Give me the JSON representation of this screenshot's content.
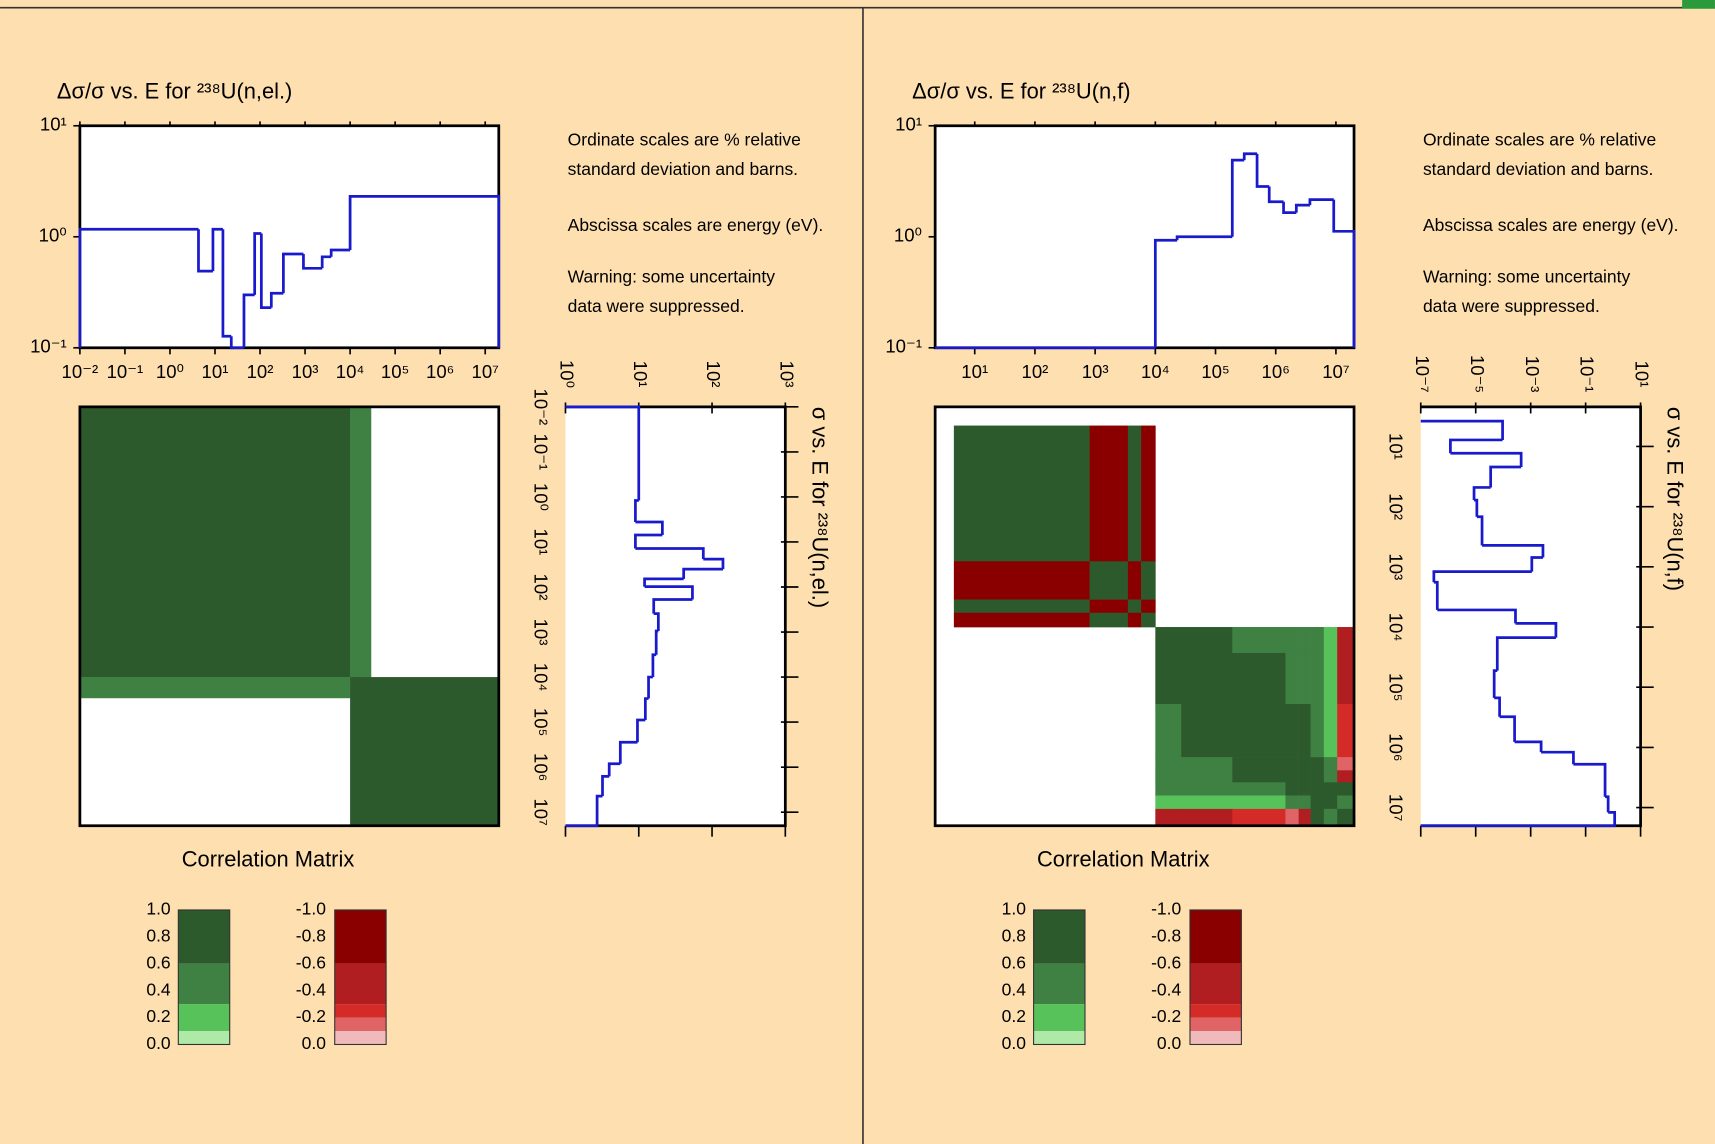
{
  "chart_data": [
    {
      "type": "covariance",
      "uncertainty": {
        "title": "Δσ/σ vs. E for ²³⁸U(n,el.)",
        "color": "#1a1acd",
        "bins": [
          0.01,
          4.3,
          9,
          15,
          23,
          44,
          76,
          107,
          178,
          330,
          920,
          2400,
          3800,
          10000,
          20000000
        ],
        "values": [
          1.17,
          0.49,
          1.17,
          0.127,
          0.1,
          0.3,
          1.07,
          0.23,
          0.31,
          0.7,
          0.52,
          0.66,
          0.76,
          2.31
        ],
        "log_x": true,
        "log_y": true,
        "xlim": [
          0.01,
          20000000
        ],
        "ylim": [
          0.1,
          10
        ],
        "xticks": [
          {
            "value": 0.01,
            "label": "10⁻²"
          },
          {
            "value": 0.1,
            "label": "10⁻¹"
          },
          {
            "value": 1,
            "label": "10⁰"
          },
          {
            "value": 10,
            "label": "10¹"
          },
          {
            "value": 100,
            "label": "10²"
          },
          {
            "value": 1000,
            "label": "10³"
          },
          {
            "value": 10000,
            "label": "10⁴"
          },
          {
            "value": 100000,
            "label": "10⁵"
          },
          {
            "value": 1000000,
            "label": "10⁶"
          },
          {
            "value": 10000000,
            "label": "10⁷"
          }
        ],
        "yticks": [
          {
            "value": 0.1,
            "label": "10⁻¹"
          },
          {
            "value": 1,
            "label": "10⁰"
          },
          {
            "value": 10,
            "label": "10¹"
          }
        ]
      },
      "notes": [
        "Ordinate scales are % relative",
        "standard deviation and barns.",
        "Abscissa scales are energy (eV).",
        "Warning:  some uncertainty",
        "data were suppressed."
      ],
      "cross_section": {
        "title": "σ vs. E for ²³⁸U(n,el.)",
        "color": "#1a1acd",
        "bins": [
          0.01,
          1.2,
          3.6,
          7,
          14,
          24,
          40,
          66,
          98,
          190,
          390,
          950,
          3200,
          10000,
          30000,
          90000,
          280000,
          840000,
          1600000,
          4400000,
          20000000
        ],
        "values": [
          10,
          9,
          21,
          9,
          76,
          141,
          41,
          12,
          54,
          16,
          18.5,
          17.3,
          15.6,
          13.6,
          12.3,
          9.6,
          5.6,
          3.95,
          3.2,
          2.7
        ],
        "log_x": true,
        "log_y": true,
        "xlim": [
          1,
          1000
        ],
        "ylim": [
          0.01,
          20000000
        ],
        "xticks": [
          {
            "value": 1,
            "label": "10⁰"
          },
          {
            "value": 10,
            "label": "10¹"
          },
          {
            "value": 100,
            "label": "10²"
          },
          {
            "value": 1000,
            "label": "10³"
          }
        ],
        "yticks": [
          {
            "value": 0.01,
            "label": "10⁻²"
          },
          {
            "value": 0.1,
            "label": "10⁻¹"
          },
          {
            "value": 1,
            "label": "10⁰"
          },
          {
            "value": 10,
            "label": "10¹"
          },
          {
            "value": 100,
            "label": "10²"
          },
          {
            "value": 1000,
            "label": "10³"
          },
          {
            "value": 10000,
            "label": "10⁴"
          },
          {
            "value": 100000,
            "label": "10⁵"
          },
          {
            "value": 1000000,
            "label": "10⁶"
          },
          {
            "value": 10000000,
            "label": "10⁷"
          }
        ]
      },
      "correlation": {
        "title": "Correlation Matrix",
        "xlim": [
          0.01,
          20000000
        ],
        "ylim": [
          0.01,
          20000000
        ],
        "bins": [
          0.01,
          10000,
          16500,
          29000,
          20000000
        ],
        "matrix": [
          [
            0.9,
            0.5,
            0.3,
            0
          ],
          [
            0.5,
            0.9,
            0.9,
            0.9
          ],
          [
            0.3,
            0.9,
            0.9,
            0.9
          ],
          [
            0,
            0.9,
            0.9,
            0.9
          ]
        ],
        "color_bands": [
          {
            "min": 0.6,
            "max": 1,
            "color": "#2d5a2d"
          },
          {
            "min": 0.3,
            "max": 0.6,
            "color": "#3f8043"
          },
          {
            "min": 0.1,
            "max": 0.3,
            "color": "#58c25a"
          },
          {
            "min": 0,
            "max": 0.1,
            "color": "#aee9a8"
          },
          {
            "min": -1,
            "max": -0.6,
            "color": "#8a0000"
          },
          {
            "min": -0.6,
            "max": -0.3,
            "color": "#b01e22"
          },
          {
            "min": -0.3,
            "max": -0.2,
            "color": "#d42b28"
          },
          {
            "min": -0.2,
            "max": -0.1,
            "color": "#e06466"
          },
          {
            "min": -0.1,
            "max": 0,
            "color": "#f0b9bc"
          }
        ],
        "positive_ticks": [
          {
            "value": 1,
            "label": "1.0"
          },
          {
            "value": 0.8,
            "label": "0.8"
          },
          {
            "value": 0.6,
            "label": "0.6"
          },
          {
            "value": 0.4,
            "label": "0.4"
          },
          {
            "value": 0.2,
            "label": "0.2"
          },
          {
            "value": 0,
            "label": "0.0"
          }
        ],
        "negative_ticks": [
          {
            "value": -1,
            "label": "-1.0"
          },
          {
            "value": -0.8,
            "label": "-0.8"
          },
          {
            "value": -0.6,
            "label": "-0.6"
          },
          {
            "value": -0.4,
            "label": "-0.4"
          },
          {
            "value": -0.2,
            "label": "-0.2"
          },
          {
            "value": 0,
            "label": "0.0"
          }
        ]
      }
    },
    {
      "type": "covariance",
      "uncertainty": {
        "title": "Δσ/σ vs. E for ²³⁸U(n,f)",
        "color": "#1a1acd",
        "bins": [
          2.2,
          10000,
          23000,
          190000,
          300000,
          490000,
          780000,
          1350000,
          2200000,
          3700000,
          9200000,
          20000000
        ],
        "values": [
          0.1,
          0.93,
          1.0,
          4.9,
          5.6,
          2.84,
          2.07,
          1.65,
          1.93,
          2.16,
          1.12
        ],
        "log_x": true,
        "log_y": true,
        "xlim": [
          2.2,
          20000000
        ],
        "ylim": [
          0.1,
          10
        ],
        "xticks": [
          {
            "value": 10,
            "label": "10¹"
          },
          {
            "value": 100,
            "label": "10²"
          },
          {
            "value": 1000,
            "label": "10³"
          },
          {
            "value": 10000,
            "label": "10⁴"
          },
          {
            "value": 100000,
            "label": "10⁵"
          },
          {
            "value": 1000000,
            "label": "10⁶"
          },
          {
            "value": 10000000,
            "label": "10⁷"
          }
        ],
        "yticks": [
          {
            "value": 0.1,
            "label": "10⁻¹"
          },
          {
            "value": 1,
            "label": "10⁰"
          },
          {
            "value": 10,
            "label": "10¹"
          }
        ]
      },
      "notes": [
        "Ordinate scales are % relative",
        "standard deviation and barns.",
        "Abscissa scales are energy (eV).",
        "Warning:  some uncertainty",
        "data were suppressed."
      ],
      "cross_section": {
        "title": "σ vs. E for ²³⁸U(n,f)",
        "color": "#1a1acd",
        "bins": [
          3.8,
          7.8,
          13,
          22,
          48,
          78,
          147,
          440,
          700,
          1200,
          1800,
          5200,
          8700,
          15000,
          53000,
          150000,
          310000,
          810000,
          1200000,
          1900000,
          6600000,
          12000000,
          20000000
        ],
        "values": [
          9.5e-05,
          1.2e-06,
          0.00045,
          3.5e-05,
          8.7e-06,
          1.1e-05,
          1.7e-05,
          0.0028,
          0.0011,
          3e-07,
          4e-07,
          0.00028,
          0.0083,
          6.1e-05,
          4.7e-05,
          7.4e-05,
          0.00026,
          0.0024,
          0.036,
          0.51,
          0.66,
          1.14
        ],
        "log_x": true,
        "log_y": true,
        "xlim": [
          1e-07,
          10
        ],
        "ylim": [
          2.2,
          20000000
        ],
        "xticks": [
          {
            "value": 1e-07,
            "label": "10⁻⁷"
          },
          {
            "value": 1e-05,
            "label": "10⁻⁵"
          },
          {
            "value": 0.001,
            "label": "10⁻³"
          },
          {
            "value": 0.1,
            "label": "10⁻¹"
          },
          {
            "value": 10,
            "label": "10¹"
          }
        ],
        "yticks": [
          {
            "value": 10,
            "label": "10¹"
          },
          {
            "value": 100,
            "label": "10²"
          },
          {
            "value": 1000,
            "label": "10³"
          },
          {
            "value": 10000,
            "label": "10⁴"
          },
          {
            "value": 100000,
            "label": "10⁵"
          },
          {
            "value": 1000000,
            "label": "10⁶"
          },
          {
            "value": 10000000,
            "label": "10⁷"
          }
        ]
      },
      "correlation": {
        "title": "Correlation Matrix",
        "xlim": [
          2.2,
          20000000
        ],
        "ylim": [
          2.2,
          20000000
        ],
        "bins": [
          4.5,
          810,
          3500,
          5800,
          10000,
          27000,
          190000,
          1450000,
          2400000,
          3800000,
          6300000,
          10500000,
          20000000
        ],
        "matrix": [
          [
            0.9,
            -0.9,
            0.9,
            -0.9,
            0,
            0,
            0,
            0,
            0,
            0,
            0,
            0
          ],
          [
            -0.9,
            0.9,
            -0.9,
            0.9,
            0,
            0,
            0,
            0,
            0,
            0,
            0,
            0
          ],
          [
            0.9,
            -0.9,
            0.9,
            -0.9,
            0,
            0,
            0,
            0,
            0,
            0,
            0,
            0
          ],
          [
            -0.9,
            0.9,
            -0.9,
            0.9,
            0,
            0,
            0,
            0,
            0,
            0,
            0,
            0
          ],
          [
            0,
            0,
            0,
            0,
            0.9,
            0.9,
            0.5,
            0.5,
            0.5,
            0.5,
            0.15,
            -0.5
          ],
          [
            0,
            0,
            0,
            0,
            0.9,
            0.9,
            0.9,
            0.5,
            0.5,
            0.5,
            0.15,
            -0.5
          ],
          [
            0,
            0,
            0,
            0,
            0.5,
            0.9,
            0.9,
            0.9,
            0.9,
            0.5,
            0.15,
            -0.25
          ],
          [
            0,
            0,
            0,
            0,
            0.5,
            0.5,
            0.9,
            0.9,
            0.9,
            0.9,
            0.5,
            -0.15
          ],
          [
            0,
            0,
            0,
            0,
            0.5,
            0.5,
            0.9,
            0.9,
            0.9,
            0.9,
            0.5,
            -0.5
          ],
          [
            0,
            0,
            0,
            0,
            0.5,
            0.5,
            0.5,
            0.9,
            0.9,
            0.9,
            0.9,
            0.9
          ],
          [
            0,
            0,
            0,
            0,
            0.15,
            0.15,
            0.15,
            0.5,
            0.5,
            0.9,
            0.9,
            0.5
          ],
          [
            0,
            0,
            0,
            0,
            -0.5,
            -0.5,
            -0.25,
            -0.15,
            -0.5,
            0.9,
            0.5,
            0.9
          ]
        ],
        "color_bands": [
          {
            "min": 0.6,
            "max": 1,
            "color": "#2d5a2d"
          },
          {
            "min": 0.3,
            "max": 0.6,
            "color": "#3f8043"
          },
          {
            "min": 0.1,
            "max": 0.3,
            "color": "#58c25a"
          },
          {
            "min": 0,
            "max": 0.1,
            "color": "#aee9a8"
          },
          {
            "min": -1,
            "max": -0.6,
            "color": "#8a0000"
          },
          {
            "min": -0.6,
            "max": -0.3,
            "color": "#b01e22"
          },
          {
            "min": -0.3,
            "max": -0.2,
            "color": "#d42b28"
          },
          {
            "min": -0.2,
            "max": -0.1,
            "color": "#e06466"
          },
          {
            "min": -0.1,
            "max": 0,
            "color": "#f0b9bc"
          }
        ],
        "positive_ticks": [
          {
            "value": 1,
            "label": "1.0"
          },
          {
            "value": 0.8,
            "label": "0.8"
          },
          {
            "value": 0.6,
            "label": "0.6"
          },
          {
            "value": 0.4,
            "label": "0.4"
          },
          {
            "value": 0.2,
            "label": "0.2"
          },
          {
            "value": 0,
            "label": "0.0"
          }
        ],
        "negative_ticks": [
          {
            "value": -1,
            "label": "-1.0"
          },
          {
            "value": -0.8,
            "label": "-0.8"
          },
          {
            "value": -0.6,
            "label": "-0.6"
          },
          {
            "value": -0.4,
            "label": "-0.4"
          },
          {
            "value": -0.2,
            "label": "-0.2"
          },
          {
            "value": 0,
            "label": "0.0"
          }
        ]
      }
    }
  ]
}
